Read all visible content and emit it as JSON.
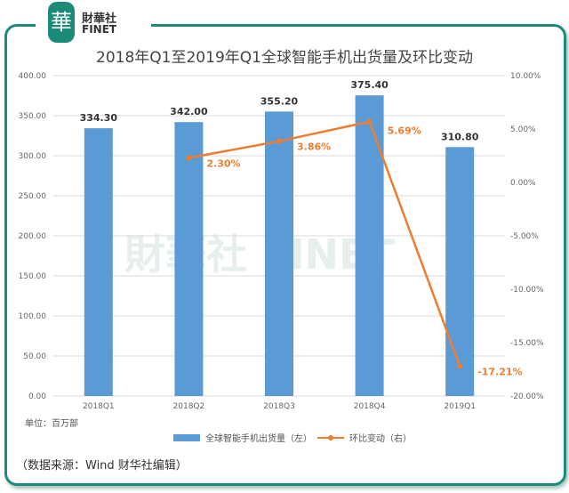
{
  "logo": {
    "cn": "財華社",
    "en": "FINET",
    "mark": "華"
  },
  "watermark": "財華社 FINET",
  "unit": "单位：百万部",
  "source": "（数据来源：Wind  财华社编辑）",
  "chart_data": {
    "type": "bar+line",
    "title": "2018年Q1至2019年Q1全球智能手机出货量及环比变动",
    "categories": [
      "2018Q1",
      "2018Q2",
      "2018Q3",
      "2018Q4",
      "2019Q1"
    ],
    "series": [
      {
        "name": "全球智能手机出货量（左）",
        "type": "bar",
        "axis": "left",
        "values": [
          334.3,
          342.0,
          355.2,
          375.4,
          310.8
        ],
        "labels": [
          "334.30",
          "342.00",
          "355.20",
          "375.40",
          "310.80"
        ],
        "color": "#5b9bd5"
      },
      {
        "name": "环比变动（右）",
        "type": "line",
        "axis": "right",
        "values": [
          null,
          2.3,
          3.86,
          5.69,
          -17.21
        ],
        "labels": [
          "",
          "2.30%",
          "3.86%",
          "5.69%",
          "-17.21%"
        ],
        "color": "#ed7d31"
      }
    ],
    "yleft": {
      "lim": [
        0,
        400
      ],
      "ticks": [
        "0.00",
        "50.00",
        "100.00",
        "150.00",
        "200.00",
        "250.00",
        "300.00",
        "350.00",
        "400.00"
      ]
    },
    "yright": {
      "lim": [
        -20,
        10
      ],
      "ticks": [
        "-20.00%",
        "-15.00%",
        "-10.00%",
        "-5.00%",
        "0.00%",
        "5.00%",
        "10.00%"
      ]
    },
    "grid": true,
    "legend": "bottom"
  }
}
